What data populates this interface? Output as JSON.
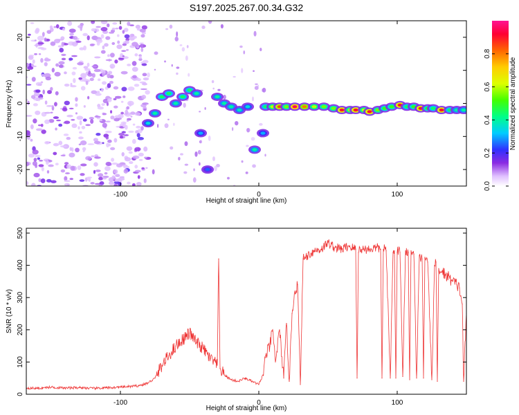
{
  "title": "S197.2025.267.00.34.G32",
  "colors": {
    "snr_line": "#ee3333",
    "axis": "#000000",
    "background": "#ffffff"
  },
  "chart_data": [
    {
      "type": "heatmap",
      "xlabel": "Height of straight line (km)",
      "ylabel": "Frequency (Hz)",
      "xlim": [
        -168,
        150
      ],
      "ylim": [
        -25,
        25
      ],
      "x_ticks": [
        -100,
        0,
        100
      ],
      "x_tick_labels": [
        "-100",
        "0",
        "100"
      ],
      "y_ticks": [
        -20,
        -10,
        0,
        10,
        20
      ],
      "y_tick_labels": [
        "-20",
        "-10",
        "0",
        "10",
        "20"
      ],
      "colorbar": {
        "label": "Normalized spectral amplitude",
        "range": [
          0,
          1
        ],
        "ticks": [
          0.0,
          0.2,
          0.4,
          0.6,
          0.8
        ],
        "tick_labels": [
          "0.0",
          "0.2",
          "0.4",
          "0.6",
          "0.8"
        ]
      },
      "ridge": [
        {
          "x": -80,
          "y": -6,
          "a": 0.35
        },
        {
          "x": -75,
          "y": -3,
          "a": 0.4
        },
        {
          "x": -70,
          "y": 2,
          "a": 0.45
        },
        {
          "x": -65,
          "y": 3,
          "a": 0.45
        },
        {
          "x": -60,
          "y": 0,
          "a": 0.4
        },
        {
          "x": -55,
          "y": 2,
          "a": 0.45
        },
        {
          "x": -50,
          "y": 4,
          "a": 0.45
        },
        {
          "x": -45,
          "y": 3,
          "a": 0.4
        },
        {
          "x": -42,
          "y": -9,
          "a": 0.3
        },
        {
          "x": -37,
          "y": -20,
          "a": 0.25
        },
        {
          "x": -30,
          "y": 2,
          "a": 0.4
        },
        {
          "x": -25,
          "y": 0,
          "a": 0.4
        },
        {
          "x": -20,
          "y": -1,
          "a": 0.4
        },
        {
          "x": -14,
          "y": -2,
          "a": 0.38
        },
        {
          "x": -8,
          "y": -1,
          "a": 0.35
        },
        {
          "x": -3,
          "y": -14,
          "a": 0.4
        },
        {
          "x": 3,
          "y": -9,
          "a": 0.3
        },
        {
          "x": 5,
          "y": -1,
          "a": 0.45
        },
        {
          "x": 10,
          "y": -1,
          "a": 0.6
        },
        {
          "x": 15,
          "y": -1,
          "a": 0.85
        },
        {
          "x": 20,
          "y": -1,
          "a": 0.55
        },
        {
          "x": 26,
          "y": -1,
          "a": 0.95
        },
        {
          "x": 33,
          "y": -1,
          "a": 0.8
        },
        {
          "x": 40,
          "y": -1,
          "a": 0.6
        },
        {
          "x": 47,
          "y": -1,
          "a": 0.55
        },
        {
          "x": 54,
          "y": -1.5,
          "a": 0.55
        },
        {
          "x": 60,
          "y": -2,
          "a": 0.9
        },
        {
          "x": 66,
          "y": -2,
          "a": 0.6
        },
        {
          "x": 70,
          "y": -2,
          "a": 0.9
        },
        {
          "x": 76,
          "y": -2,
          "a": 0.6
        },
        {
          "x": 80,
          "y": -2.5,
          "a": 0.9
        },
        {
          "x": 86,
          "y": -2,
          "a": 0.55
        },
        {
          "x": 91,
          "y": -1.5,
          "a": 0.5
        },
        {
          "x": 96,
          "y": -1,
          "a": 0.5
        },
        {
          "x": 102,
          "y": -0.5,
          "a": 0.9
        },
        {
          "x": 107,
          "y": -1,
          "a": 0.45
        },
        {
          "x": 112,
          "y": -1,
          "a": 0.5
        },
        {
          "x": 117,
          "y": -1.5,
          "a": 0.9
        },
        {
          "x": 122,
          "y": -1.5,
          "a": 0.5
        },
        {
          "x": 126,
          "y": -1.5,
          "a": 0.45
        },
        {
          "x": 132,
          "y": -2,
          "a": 0.9
        },
        {
          "x": 138,
          "y": -2,
          "a": 0.45
        },
        {
          "x": 143,
          "y": -2,
          "a": 0.4
        },
        {
          "x": 148,
          "y": -2,
          "a": 0.4
        }
      ]
    },
    {
      "type": "line",
      "xlabel": "Height of straight line (km)",
      "ylabel": "SNR (10 * v/v)",
      "xlim": [
        -168,
        150
      ],
      "ylim": [
        0,
        515
      ],
      "x_ticks": [
        -100,
        0,
        100
      ],
      "x_tick_labels": [
        "-100",
        "0",
        "100"
      ],
      "y_ticks": [
        0,
        100,
        200,
        300,
        400,
        500
      ],
      "y_tick_labels": [
        "0",
        "100",
        "200",
        "300",
        "400",
        "500"
      ],
      "series": [
        {
          "name": "SNR",
          "x": [
            -168,
            -160,
            -150,
            -140,
            -130,
            -120,
            -110,
            -100,
            -90,
            -85,
            -80,
            -75,
            -70,
            -65,
            -60,
            -55,
            -50,
            -45,
            -40,
            -35,
            -30,
            -29,
            -28,
            -25,
            -20,
            -15,
            -10,
            -5,
            0,
            3,
            5,
            8,
            10,
            12,
            15,
            18,
            20,
            22,
            24,
            26,
            28,
            30,
            32,
            35,
            40,
            45,
            50,
            55,
            60,
            65,
            70,
            71,
            72,
            73,
            74,
            75,
            80,
            85,
            88,
            89,
            90,
            91,
            92,
            95,
            97,
            98,
            99,
            100,
            101,
            102,
            104,
            106,
            108,
            109,
            110,
            111,
            112,
            114,
            116,
            118,
            119,
            120,
            121,
            122,
            125,
            127,
            128,
            129,
            130,
            131,
            132,
            135,
            138,
            140,
            143,
            145,
            147,
            148,
            150
          ],
          "y": [
            20,
            18,
            22,
            19,
            21,
            18,
            20,
            22,
            25,
            28,
            35,
            50,
            90,
            120,
            150,
            170,
            190,
            160,
            140,
            110,
            90,
            420,
            80,
            60,
            45,
            40,
            50,
            40,
            30,
            60,
            120,
            150,
            200,
            100,
            200,
            50,
            220,
            40,
            250,
            320,
            340,
            30,
            420,
            430,
            445,
            450,
            470,
            455,
            450,
            460,
            450,
            50,
            440,
            455,
            450,
            450,
            450,
            455,
            450,
            50,
            450,
            455,
            445,
            50,
            440,
            445,
            50,
            440,
            450,
            440,
            55,
            445,
            440,
            45,
            445,
            440,
            435,
            50,
            430,
            420,
            50,
            425,
            420,
            410,
            45,
            400,
            410,
            40,
            390,
            380,
            380,
            370,
            360,
            350,
            340,
            330,
            280,
            40,
            250
          ]
        }
      ]
    }
  ]
}
